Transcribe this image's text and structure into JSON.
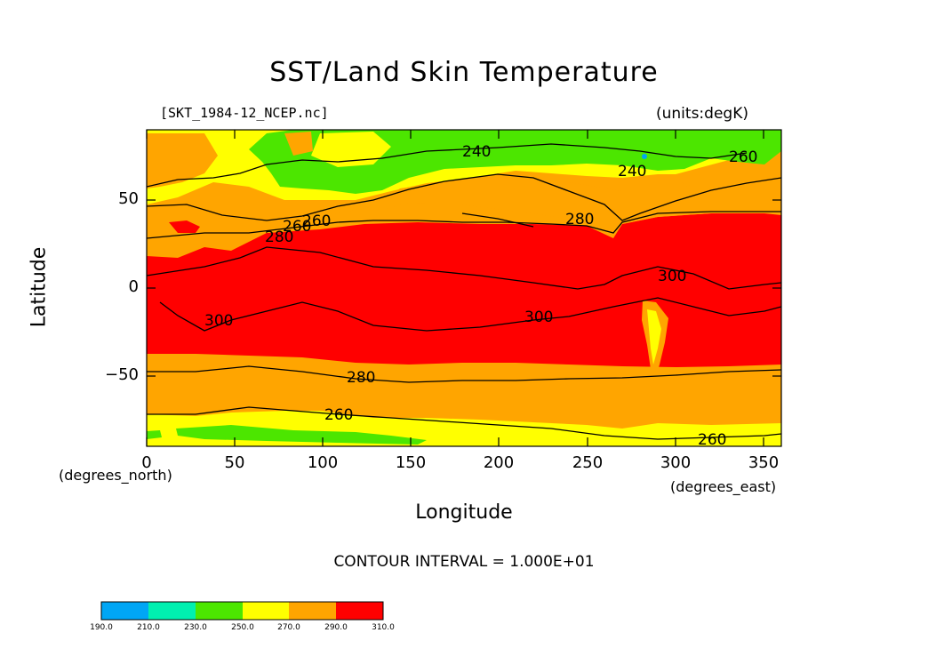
{
  "title": "SST/Land Skin Temperature",
  "file_label": "[SKT_1984-12_NCEP.nc]",
  "units_label": "(units:degK)",
  "x_unit_left": "(degrees_north)",
  "x_unit_right": "(degrees_east)",
  "x_axis_label": "Longitude",
  "y_axis_label": "Latitude",
  "contour_interval": "CONTOUR INTERVAL = 1.000E+01",
  "x_ticks": [
    "0",
    "50",
    "100",
    "150",
    "200",
    "250",
    "300",
    "350"
  ],
  "y_ticks": [
    "50",
    "0",
    "−50"
  ],
  "contour_labels": [
    "240",
    "240",
    "260",
    "260",
    "280",
    "280",
    "300",
    "300",
    "300",
    "280",
    "260",
    "260",
    "260"
  ],
  "colorbar": {
    "ticks": [
      "190.0",
      "210.0",
      "230.0",
      "250.0",
      "270.0",
      "290.0",
      "310.0"
    ],
    "colors": [
      "#00a6f5",
      "#00f0b0",
      "#4ce600",
      "#ffff00",
      "#ffa500",
      "#ff0000"
    ]
  },
  "chart_data": {
    "type": "heatmap",
    "title": "SST/Land Skin Temperature",
    "xlabel": "Longitude",
    "ylabel": "Latitude",
    "xlim": [
      0,
      360
    ],
    "ylim": [
      -90,
      90
    ],
    "units": "degK",
    "levels": [
      190,
      210,
      230,
      250,
      270,
      290,
      310
    ],
    "contour_interval": 10,
    "contours_labeled": [
      240,
      260,
      280,
      300
    ]
  }
}
